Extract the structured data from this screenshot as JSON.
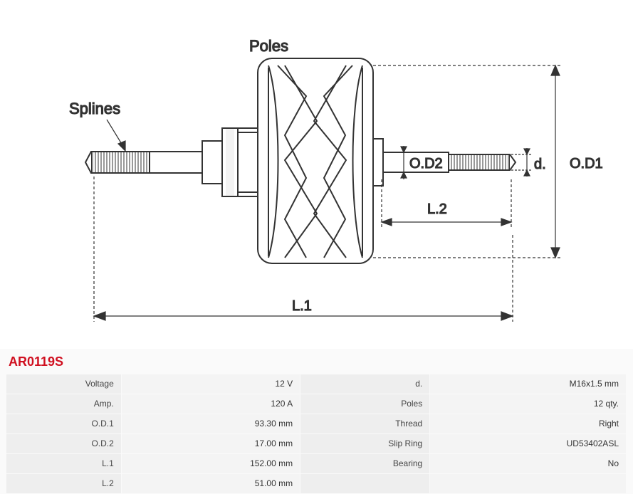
{
  "part_number": "AR0119S",
  "part_color": "#d01020",
  "diagram": {
    "labels": {
      "poles": "Poles",
      "splines": "Splines",
      "L1": "L.1",
      "L2": "L.2",
      "OD1": "O.D1",
      "OD2": "O.D2",
      "d": "d."
    },
    "stroke": "#333333",
    "bg": "#ffffff"
  },
  "specs": [
    {
      "label": "Voltage",
      "value": "12 V",
      "label2": "d.",
      "value2": "M16x1.5 mm"
    },
    {
      "label": "Amp.",
      "value": "120 A",
      "label2": "Poles",
      "value2": "12  qty."
    },
    {
      "label": "O.D.1",
      "value": "93.30 mm",
      "label2": "Thread",
      "value2": "Right"
    },
    {
      "label": "O.D.2",
      "value": "17.00  mm",
      "label2": "Slip Ring",
      "value2": "UD53402ASL"
    },
    {
      "label": "L.1",
      "value": "152.00  mm",
      "label2": "Bearing",
      "value2": "No"
    },
    {
      "label": "L.2",
      "value": "51.00  mm",
      "label2": "",
      "value2": ""
    }
  ]
}
